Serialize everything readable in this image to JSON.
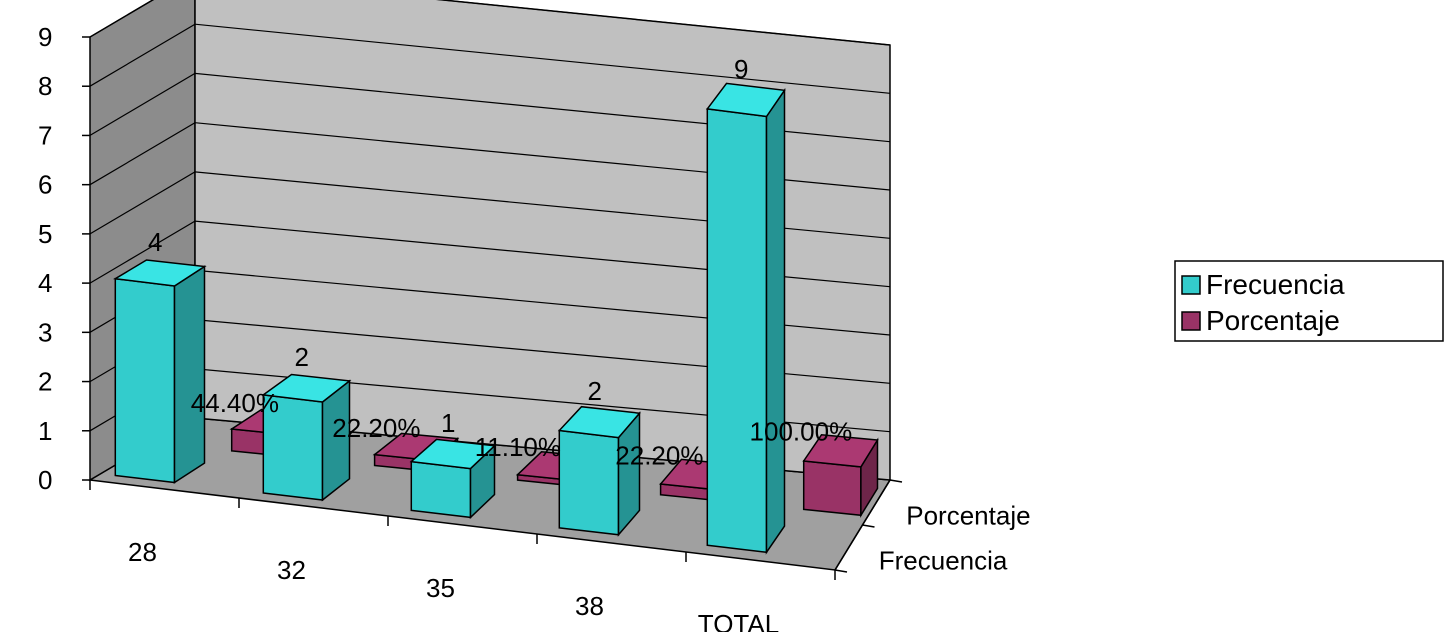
{
  "chart_data": {
    "type": "bar",
    "categories": [
      "28",
      "32",
      "35",
      "38",
      "TOTAL"
    ],
    "series": [
      {
        "name": "Frecuencia",
        "values": [
          4,
          2,
          1,
          2,
          9
        ],
        "labels": [
          "4",
          "2",
          "1",
          "2",
          "9"
        ],
        "color": "#33CCCC"
      },
      {
        "name": "Porcentaje",
        "values": [
          0.444,
          0.222,
          0.111,
          0.222,
          1.0
        ],
        "labels": [
          "44.40%",
          "22.20%",
          "11.10%",
          "22.20%",
          "100.00%"
        ],
        "color": "#993366"
      }
    ],
    "y_ticks": [
      "0",
      "1",
      "2",
      "3",
      "4",
      "5",
      "6",
      "7",
      "8",
      "9"
    ],
    "ylim": [
      0,
      9
    ],
    "depth_axis_labels": [
      "Frecuencia",
      "Porcentaje"
    ],
    "grid": true,
    "legend_position": "right",
    "legend": [
      "Frecuencia",
      "Porcentaje"
    ],
    "style": "3d-clustered-column",
    "wall_color": "#C0C0C0",
    "floor_color": "#A0A0A0"
  }
}
